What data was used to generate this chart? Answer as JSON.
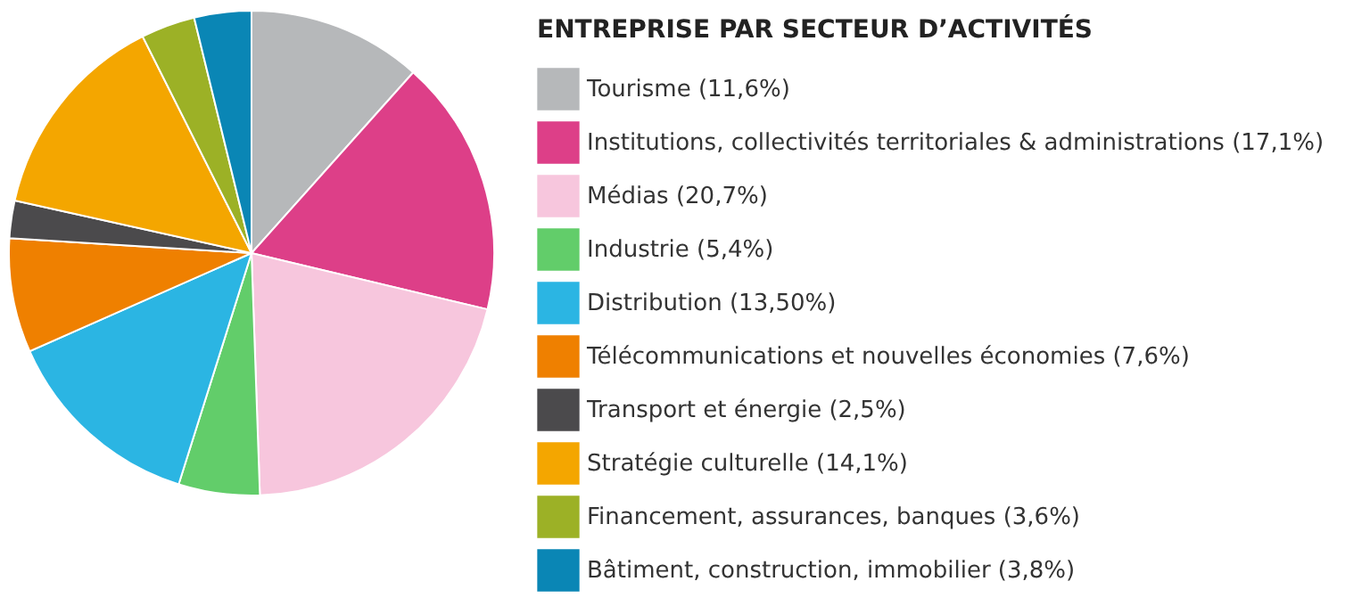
{
  "chart_data": {
    "type": "pie",
    "legend_title": "ENTREPRISE PAR SECTEUR D’ACTIVITÉS",
    "legend": "right",
    "categories": [
      "Tourisme (11,6%)",
      "Institutions, collectivités territoriales & administrations (17,1%)",
      "Médias (20,7%)",
      "Industrie (5,4%)",
      "Distribution (13,50%)",
      "Télécommunications et nouvelles économies (7,6%)",
      "Transport et énergie (2,5%)",
      "Stratégie culturelle (14,1%)",
      "Financement, assurances, banques (3,6%)",
      "Bâtiment, construction, immobilier (3,8%)"
    ],
    "values": [
      11.6,
      17.1,
      20.7,
      5.4,
      13.5,
      7.6,
      2.5,
      14.1,
      3.6,
      3.8
    ],
    "colors": [
      "#b6b8ba",
      "#dd3f88",
      "#f7c6dd",
      "#62cd6a",
      "#2bb5e3",
      "#ef8000",
      "#4b4a4c",
      "#f4a600",
      "#9cb126",
      "#0a86b5"
    ]
  }
}
